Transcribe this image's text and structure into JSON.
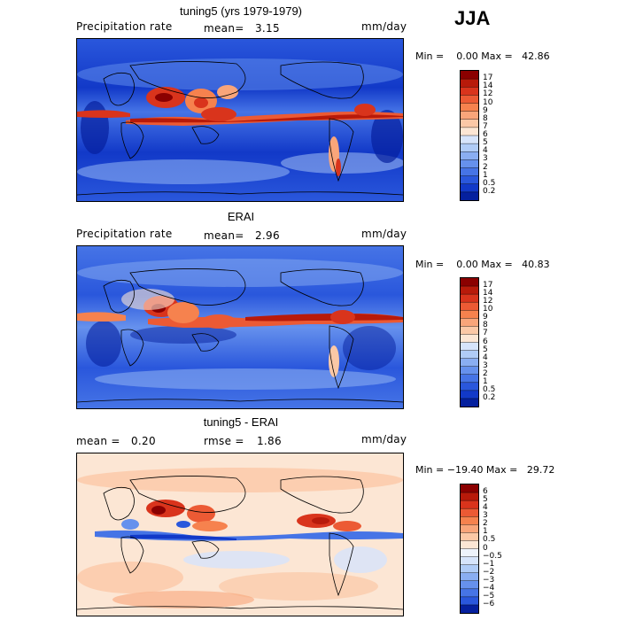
{
  "season": "JJA",
  "panels": [
    {
      "title": "tuning5 (yrs 1979-1979)",
      "left_label": "Precipitation rate",
      "mid_label": "mean=",
      "mid_value": "3.15",
      "units": "mm/day",
      "minmax": "Min =    0.00 Max =   42.86",
      "colorbar_labels": [
        "17",
        "14",
        "12",
        "10",
        "9",
        "8",
        "7",
        "6",
        "5",
        "4",
        "3",
        "2",
        "1",
        "0.5",
        "0.2"
      ]
    },
    {
      "title": "ERAI",
      "left_label": "Precipitation rate",
      "mid_label": "mean=",
      "mid_value": "2.96",
      "units": "mm/day",
      "minmax": "Min =    0.00 Max =   40.83",
      "colorbar_labels": [
        "17",
        "14",
        "12",
        "10",
        "9",
        "8",
        "7",
        "6",
        "5",
        "4",
        "3",
        "2",
        "1",
        "0.5",
        "0.2"
      ]
    },
    {
      "title": "tuning5 - ERAI",
      "left_label": "mean =",
      "left_value": "0.20",
      "mid_label": "rmse =",
      "mid_value": "1.86",
      "units": "mm/day",
      "minmax": "Min = −19.40 Max =   29.72",
      "colorbar_labels": [
        "6",
        "5",
        "4",
        "3",
        "2",
        "1",
        "0.5",
        "0",
        "−0.5",
        "−1",
        "−2",
        "−3",
        "−4",
        "−5",
        "−6"
      ]
    }
  ],
  "colors": {
    "precip_scale": [
      "#8b0000",
      "#b81a0a",
      "#d9341c",
      "#ec5a34",
      "#f6824e",
      "#f9a57a",
      "#fbc8a6",
      "#fce6d4",
      "#d6e4fb",
      "#b0ccf7",
      "#8aaef2",
      "#6691ed",
      "#4674e6",
      "#2a57dc",
      "#1239c8",
      "#05209e"
    ],
    "diff_scale": [
      "#8b0000",
      "#b81a0a",
      "#d9341c",
      "#ec5a34",
      "#f6824e",
      "#f9a57a",
      "#fbc8a6",
      "#fce6d4",
      "#eef3fb",
      "#d6e4fb",
      "#b0ccf7",
      "#8aaef2",
      "#6691ed",
      "#4674e6",
      "#2a57dc",
      "#05209e"
    ]
  }
}
